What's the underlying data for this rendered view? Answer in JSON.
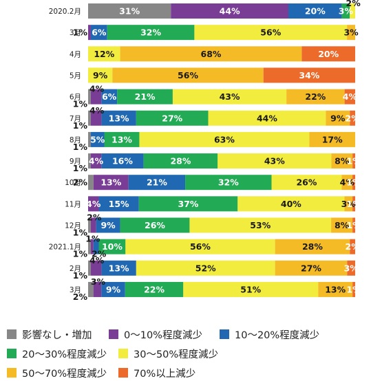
{
  "chart_data": {
    "type": "bar",
    "orientation": "horizontal",
    "stacked": true,
    "percent": true,
    "categories": [
      "2020.2月",
      "3月",
      "4月",
      "5月",
      "6月",
      "7月",
      "8月",
      "9月",
      "10月",
      "11月",
      "12月",
      "2021.1月",
      "2月",
      "3月"
    ],
    "series": [
      {
        "name": "影響なし・増加",
        "color": "#878787",
        "values": [
          31,
          0,
          0,
          0,
          1,
          1,
          1,
          1,
          2,
          0,
          1,
          1,
          1,
          2
        ]
      },
      {
        "name": "0～10%程度減少",
        "color": "#7a3d96",
        "values": [
          44,
          1,
          0,
          0,
          4,
          4,
          0,
          4,
          13,
          4,
          2,
          1,
          4,
          3
        ]
      },
      {
        "name": "10～20%程度減少",
        "color": "#2068b1",
        "values": [
          20,
          6,
          0,
          0,
          6,
          13,
          5,
          16,
          21,
          15,
          9,
          2,
          13,
          9
        ]
      },
      {
        "name": "20～30%程度減少",
        "color": "#22ab54",
        "values": [
          3,
          32,
          0,
          0,
          21,
          27,
          13,
          28,
          32,
          37,
          26,
          10,
          0,
          22
        ]
      },
      {
        "name": "30～50%程度減少",
        "color": "#f2ec3e",
        "values": [
          2,
          56,
          12,
          9,
          43,
          44,
          63,
          43,
          26,
          40,
          53,
          56,
          52,
          51
        ]
      },
      {
        "name": "50～70%程度減少",
        "color": "#f5bb27",
        "values": [
          0,
          3,
          68,
          56,
          22,
          9,
          17,
          8,
          4,
          3,
          8,
          28,
          27,
          13
        ]
      },
      {
        "name": "70%以上減少",
        "color": "#ec6a2a",
        "values": [
          0,
          0,
          20,
          34,
          4,
          2,
          0,
          1,
          1,
          1,
          1,
          2,
          3,
          1
        ]
      }
    ],
    "data_labels": [
      [
        {
          "text": "31%",
          "series": 0
        },
        {
          "text": "44%",
          "series": 1
        },
        {
          "text": "20%",
          "series": 2
        },
        {
          "text": "3%",
          "series": 3
        },
        {
          "text": "2%",
          "series": 4,
          "pos": "above"
        }
      ],
      [
        {
          "text": "1%",
          "series": 1,
          "pos": "left"
        },
        {
          "text": "6%",
          "series": 2
        },
        {
          "text": "32%",
          "series": 3
        },
        {
          "text": "56%",
          "series": 4
        },
        {
          "text": "3%",
          "series": 5
        }
      ],
      [
        {
          "text": "12%",
          "series": 4
        },
        {
          "text": "68%",
          "series": 5
        },
        {
          "text": "20%",
          "series": 6
        }
      ],
      [
        {
          "text": "9%",
          "series": 4
        },
        {
          "text": "56%",
          "series": 5
        },
        {
          "text": "34%",
          "series": 6
        }
      ],
      [
        {
          "text": "1%",
          "series": 0,
          "pos": "below-left"
        },
        {
          "text": "4%",
          "series": 1,
          "pos": "above"
        },
        {
          "text": "6%",
          "series": 2
        },
        {
          "text": "21%",
          "series": 3
        },
        {
          "text": "43%",
          "series": 4
        },
        {
          "text": "22%",
          "series": 5
        },
        {
          "text": "4%",
          "series": 6
        }
      ],
      [
        {
          "text": "1%",
          "series": 0,
          "pos": "below-left"
        },
        {
          "text": "4%",
          "series": 1,
          "pos": "above"
        },
        {
          "text": "13%",
          "series": 2
        },
        {
          "text": "27%",
          "series": 3
        },
        {
          "text": "44%",
          "series": 4
        },
        {
          "text": "9%",
          "series": 5
        },
        {
          "text": "2%",
          "series": 6
        }
      ],
      [
        {
          "text": "1%",
          "series": 0,
          "pos": "below-left"
        },
        {
          "text": "5%",
          "series": 2
        },
        {
          "text": "13%",
          "series": 3
        },
        {
          "text": "63%",
          "series": 4
        },
        {
          "text": "17%",
          "series": 5
        }
      ],
      [
        {
          "text": "1%",
          "series": 0,
          "pos": "below-left"
        },
        {
          "text": "4%",
          "series": 1
        },
        {
          "text": "16%",
          "series": 2
        },
        {
          "text": "28%",
          "series": 3
        },
        {
          "text": "43%",
          "series": 4
        },
        {
          "text": "8%",
          "series": 5
        },
        {
          "text": "1%",
          "series": 6
        }
      ],
      [
        {
          "text": "2%",
          "series": 0,
          "pos": "left"
        },
        {
          "text": "13%",
          "series": 1
        },
        {
          "text": "21%",
          "series": 2
        },
        {
          "text": "32%",
          "series": 3
        },
        {
          "text": "26%",
          "series": 4
        },
        {
          "text": "4%",
          "series": 5
        },
        {
          "text": "1%",
          "series": 6
        }
      ],
      [
        {
          "text": "4%",
          "series": 1
        },
        {
          "text": "15%",
          "series": 2
        },
        {
          "text": "37%",
          "series": 3
        },
        {
          "text": "40%",
          "series": 4
        },
        {
          "text": "3%",
          "series": 5
        },
        {
          "text": "1%",
          "series": 6
        }
      ],
      [
        {
          "text": "1%",
          "series": 0,
          "pos": "below-left"
        },
        {
          "text": "2%",
          "series": 1,
          "pos": "above"
        },
        {
          "text": "9%",
          "series": 2
        },
        {
          "text": "26%",
          "series": 3
        },
        {
          "text": "53%",
          "series": 4
        },
        {
          "text": "8%",
          "series": 5
        },
        {
          "text": "1%",
          "series": 6
        }
      ],
      [
        {
          "text": "1%",
          "series": 0,
          "pos": "below-left"
        },
        {
          "text": "1%",
          "series": 1,
          "pos": "above"
        },
        {
          "text": "2%",
          "series": 2,
          "pos": "below"
        },
        {
          "text": "10%",
          "series": 3
        },
        {
          "text": "56%",
          "series": 4
        },
        {
          "text": "28%",
          "series": 5
        },
        {
          "text": "2%",
          "series": 6
        }
      ],
      [
        {
          "text": "1%",
          "series": 0,
          "pos": "below-left"
        },
        {
          "text": "4%",
          "series": 1,
          "pos": "above"
        },
        {
          "text": "13%",
          "series": 2
        },
        {
          "text": "52%",
          "series": 4
        },
        {
          "text": "27%",
          "series": 5
        },
        {
          "text": "3%",
          "series": 6
        }
      ],
      [
        {
          "text": "2%",
          "series": 0,
          "pos": "below-left"
        },
        {
          "text": "3%",
          "series": 1,
          "pos": "above"
        },
        {
          "text": "9%",
          "series": 2
        },
        {
          "text": "22%",
          "series": 3
        },
        {
          "text": "51%",
          "series": 4
        },
        {
          "text": "13%",
          "series": 5
        },
        {
          "text": "1%",
          "series": 6
        }
      ]
    ],
    "legend_position": "bottom",
    "xlim": [
      0,
      100
    ],
    "grid": false
  }
}
